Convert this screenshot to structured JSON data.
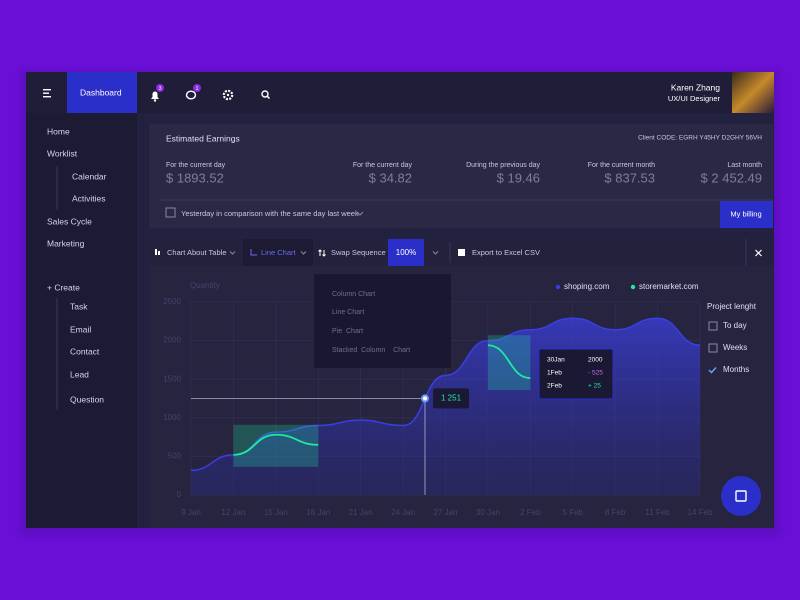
{
  "nav": {
    "dashboard": "Dashboard",
    "badges": [
      "3",
      "1"
    ],
    "user": {
      "name": "Karen Zhang",
      "role": "UX/UI Designer"
    }
  },
  "sidebar": {
    "items": [
      "Home",
      "Worklist",
      "Calendar",
      "Activities",
      "Sales Cycle",
      "Marketing"
    ],
    "create": "+ Create",
    "create_items": [
      "Task",
      "Email",
      "Contact",
      "Lead",
      "Question"
    ]
  },
  "earnings": {
    "title": "Estimated Earnings",
    "client_code": "Client CODE: EGRH Y45HY D2GHY 56VH",
    "stats": [
      {
        "label": "For the current day",
        "value": "$ 1893.52"
      },
      {
        "label": "For the current day",
        "value": "$ 34.82"
      },
      {
        "label": "During the previous day",
        "value": "$ 19.46"
      },
      {
        "label": "For the current month",
        "value": "$ 837.53"
      },
      {
        "label": "Last month",
        "value": "$ 2 452.49"
      }
    ],
    "comparison": "Yesterday in comparison with the same day last week",
    "billing": "My billing"
  },
  "toolbar": {
    "table": "Chart About Table",
    "chart_type": "Line Chart",
    "swap": "Swap Sequence",
    "zoom": "100%",
    "export": "Export to Excel CSV"
  },
  "dropdown": [
    "Column Chart",
    "Line Chart",
    "Pie  Chart",
    "Stacked  Column    Chart"
  ],
  "chart_data": {
    "type": "area",
    "ylabel": "Quantity",
    "categories": [
      "9 Jan",
      "12 Jan",
      "15 Jan",
      "18 Jan",
      "21 Jan",
      "24 Jan",
      "27 Jan",
      "30 Jan",
      "2 Feb",
      "5 Feb",
      "8 Feb",
      "11 Feb",
      "14 Feb"
    ],
    "series": [
      {
        "name": "shoping.com",
        "color": "#3b3fe0",
        "values": [
          320,
          520,
          815,
          900,
          970,
          900,
          1550,
          2000,
          2140,
          2290,
          2140,
          2290,
          1940
        ]
      },
      {
        "name": "storemarket.com",
        "color": "#1de9a0",
        "values": [
          null,
          520,
          780,
          650,
          null,
          null,
          null,
          1940,
          1515,
          null,
          null,
          null,
          null
        ]
      }
    ],
    "ylim": [
      0,
      2500
    ],
    "yticks": [
      0,
      500,
      1000,
      1500,
      2000,
      2500
    ],
    "grid": true,
    "crosshair": {
      "value": 1251,
      "label": "1 251"
    },
    "tooltip": [
      [
        "30Jan",
        "2000"
      ],
      [
        "1Feb",
        "- 525"
      ],
      [
        "2Feb",
        "+ 25"
      ]
    ]
  },
  "project_length": {
    "title": "Project lenght",
    "options": [
      "To day",
      "Weeks",
      "Months"
    ],
    "checked": 2
  }
}
